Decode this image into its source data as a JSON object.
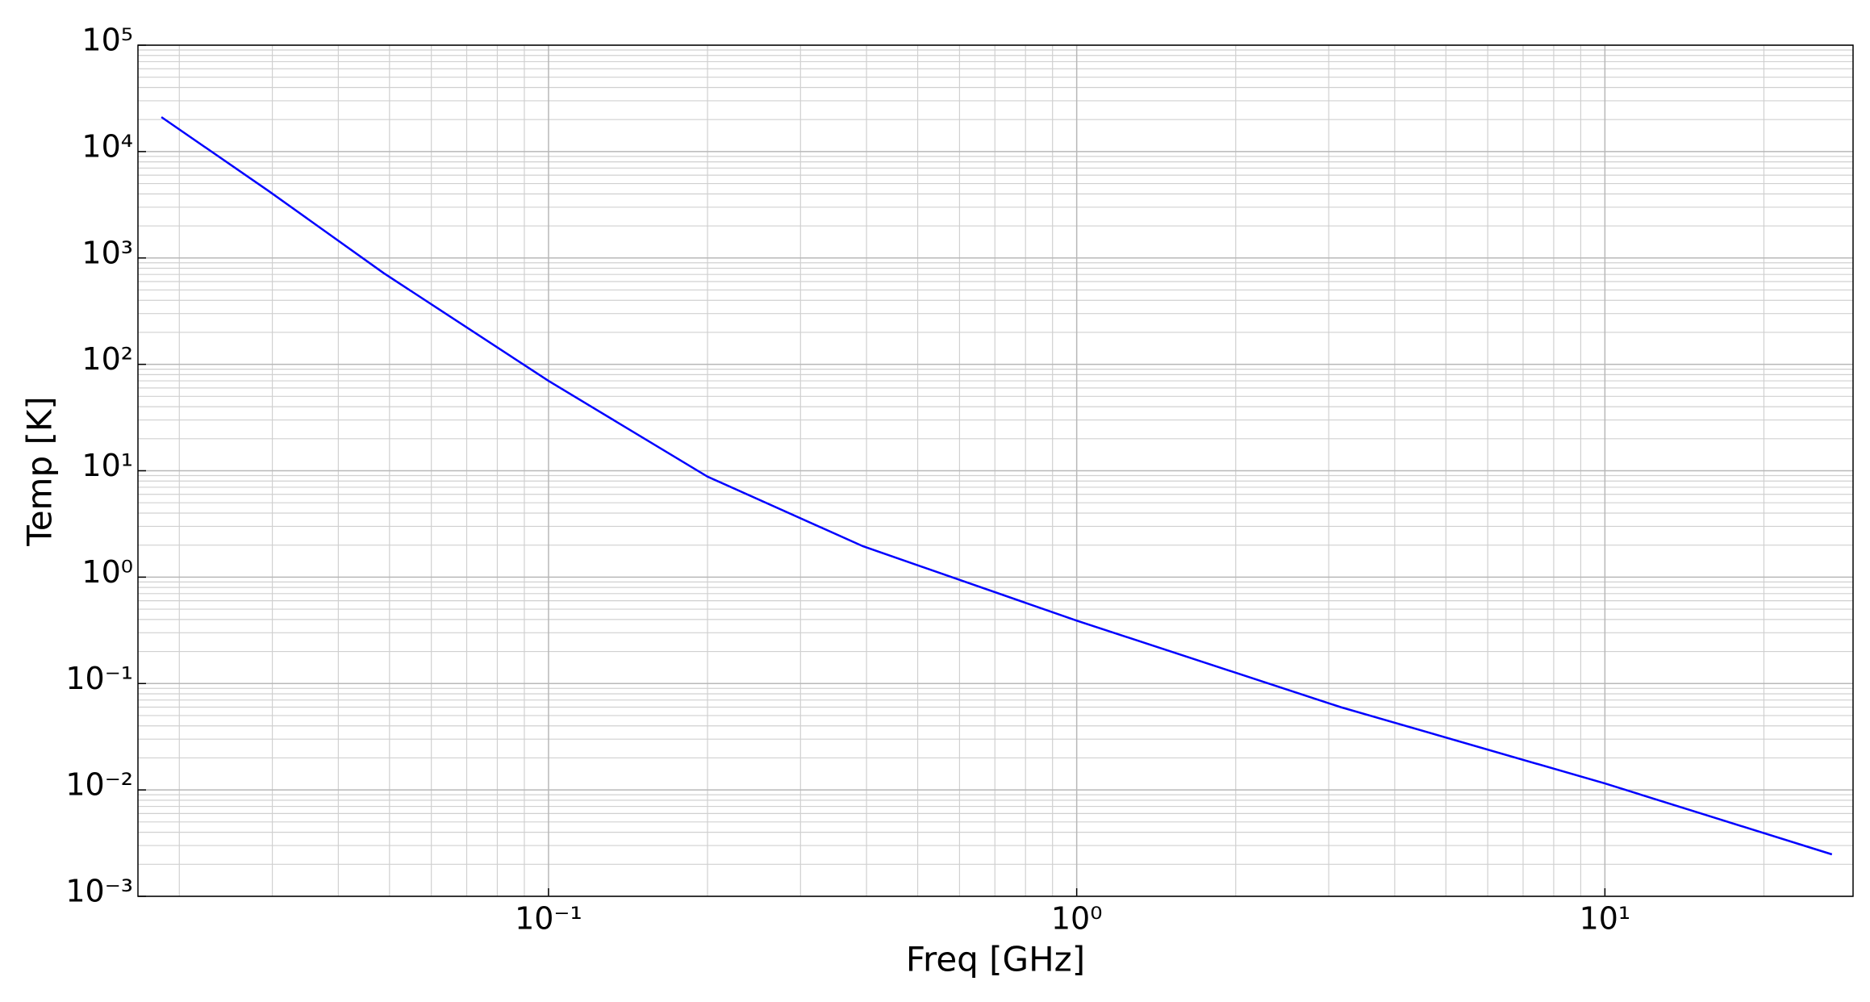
{
  "chart_data": {
    "type": "line",
    "x_label": "Freq [GHz]",
    "y_label": "Temp [K]",
    "x_scale": "log",
    "y_scale": "log",
    "grid": true,
    "xlim": [
      0.0167,
      29.5
    ],
    "ylim": [
      0.001,
      100000
    ],
    "xticks": [
      {
        "value": 0.1,
        "label": "10⁻¹"
      },
      {
        "value": 1,
        "label": "10⁰"
      },
      {
        "value": 10,
        "label": "10¹"
      }
    ],
    "yticks": [
      {
        "value": 0.001,
        "label": "10⁻³"
      },
      {
        "value": 0.01,
        "label": "10⁻²"
      },
      {
        "value": 0.1,
        "label": "10⁻¹"
      },
      {
        "value": 1,
        "label": "10⁰"
      },
      {
        "value": 10,
        "label": "10¹"
      },
      {
        "value": 100,
        "label": "10²"
      },
      {
        "value": 1000,
        "label": "10³"
      },
      {
        "value": 10000,
        "label": "10⁴"
      },
      {
        "value": 100000,
        "label": "10⁵"
      }
    ],
    "xminorticks": [
      0.02,
      0.03,
      0.04,
      0.05,
      0.06,
      0.07,
      0.08,
      0.09,
      0.2,
      0.3,
      0.4,
      0.5,
      0.6,
      0.7,
      0.8,
      0.9,
      2,
      3,
      4,
      5,
      6,
      7,
      8,
      9,
      20
    ],
    "yminorticks": [
      0.002,
      0.003,
      0.004,
      0.005,
      0.006,
      0.007,
      0.008,
      0.009,
      0.02,
      0.03,
      0.04,
      0.05,
      0.06,
      0.07,
      0.08,
      0.09,
      0.2,
      0.3,
      0.4,
      0.5,
      0.6,
      0.7,
      0.8,
      0.9,
      2,
      3,
      4,
      5,
      6,
      7,
      8,
      9,
      20,
      30,
      40,
      50,
      60,
      70,
      80,
      90,
      200,
      300,
      400,
      500,
      600,
      700,
      800,
      900,
      2000,
      3000,
      4000,
      5000,
      6000,
      7000,
      8000,
      9000,
      20000,
      30000,
      40000,
      50000,
      60000,
      70000,
      80000,
      90000
    ],
    "series": [
      {
        "color": "#0000ff",
        "x": [
          0.0185,
          0.0296,
          0.0487,
          0.1,
          0.2,
          0.394,
          1,
          3.16,
          10,
          26.9
        ],
        "values": [
          21100,
          4220,
          723,
          70,
          8.8,
          1.95,
          0.39,
          0.06,
          0.0115,
          0.00248
        ]
      }
    ]
  }
}
